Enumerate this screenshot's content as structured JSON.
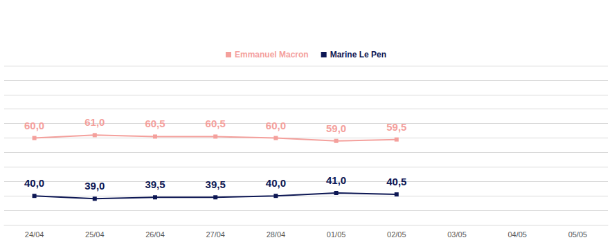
{
  "chart_data": {
    "type": "line",
    "categories": [
      "24/04",
      "25/04",
      "26/04",
      "27/04",
      "28/04",
      "01/05",
      "02/05",
      "03/05",
      "04/05",
      "05/05"
    ],
    "series": [
      {
        "name": "Emmanuel Macron",
        "color": "#f4a09c",
        "marker": "square",
        "values": [
          60.0,
          61.0,
          60.5,
          60.5,
          60.0,
          59.0,
          59.5,
          null,
          null,
          null
        ],
        "value_labels": [
          "60,0",
          "61,0",
          "60,5",
          "60,5",
          "60,0",
          "59,0",
          "59,5",
          null,
          null,
          null
        ]
      },
      {
        "name": "Marine Le Pen",
        "color": "#0d1754",
        "marker": "square",
        "values": [
          40.0,
          39.0,
          39.5,
          39.5,
          40.0,
          41.0,
          40.5,
          null,
          null,
          null
        ],
        "value_labels": [
          "40,0",
          "39,0",
          "39,5",
          "39,5",
          "40,0",
          "41,0",
          "40,5",
          null,
          null,
          null
        ]
      }
    ],
    "ylim": [
      30,
      85
    ],
    "yticks": [
      30,
      35,
      40,
      45,
      50,
      55,
      60,
      65,
      70,
      75,
      80,
      85
    ],
    "grid": true,
    "legend": "top",
    "data_labels": true,
    "tick_labels": "x"
  }
}
